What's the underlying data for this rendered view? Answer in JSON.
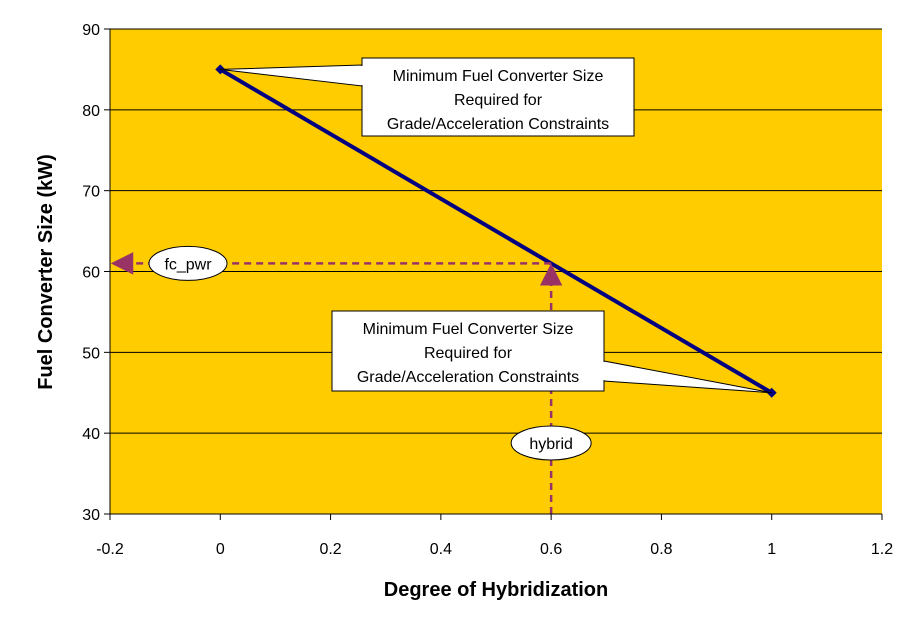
{
  "chart_data": {
    "type": "line",
    "xlabel": "Degree of Hybridization",
    "ylabel": "Fuel Converter Size (kW)",
    "xlim": [
      -0.2,
      1.2
    ],
    "ylim": [
      30,
      90
    ],
    "xticks": [
      "-0.2",
      "0",
      "0.2",
      "0.4",
      "0.6",
      "0.8",
      "1",
      "1.2"
    ],
    "yticks": [
      "30",
      "40",
      "50",
      "60",
      "70",
      "80",
      "90"
    ],
    "grid": "horizontal",
    "plot_background": "#ffcc00",
    "series": [
      {
        "color": "#000080",
        "x": [
          0,
          1
        ],
        "y": [
          85,
          45
        ]
      }
    ],
    "annotations": [
      {
        "lines": [
          "Minimum Fuel Converter Size",
          "Required for",
          "Grade/Acceleration Constraints"
        ],
        "points_to": [
          0,
          85
        ]
      },
      {
        "lines": [
          "Minimum Fuel Converter Size",
          "Required for",
          "Grade/Acceleration Constraints"
        ],
        "points_to": [
          1,
          45
        ]
      }
    ],
    "guides": {
      "color": "#993366",
      "x_value": 0.6,
      "y_value": 61,
      "x_label": "hybrid",
      "y_label": "fc_pwr"
    }
  }
}
